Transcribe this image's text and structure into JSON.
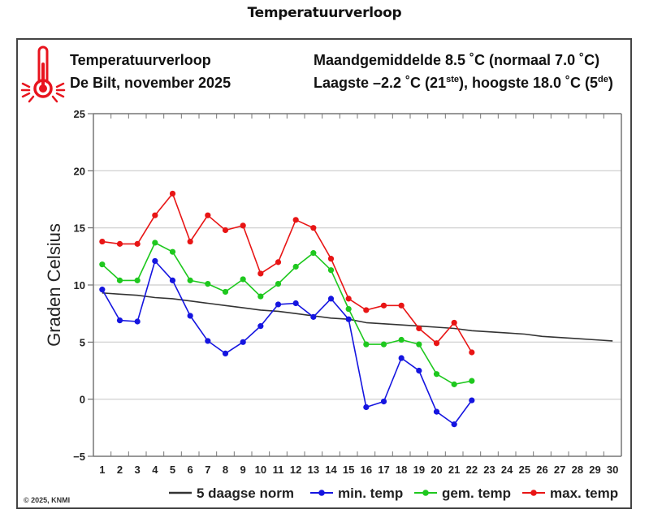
{
  "page": {
    "title": "Temperatuurverloop"
  },
  "header": {
    "title": "Temperatuurverloop",
    "subtitle": "De Bilt, november 2025",
    "monthly_avg_prefix": "Maandgemiddelde 8.5 ˚C (normaal 7.0 ˚C)",
    "extremes_part1": "Laagste –2.2 ˚C (21",
    "extremes_sup1": "ste",
    "extremes_part2": "), hoogste 18.0 ˚C (5",
    "extremes_sup2": "de",
    "extremes_part3": ")",
    "icon": "thermometer-hot-icon"
  },
  "footer": {
    "copyright": "© 2025, KNMI"
  },
  "colors": {
    "norm": "#333333",
    "min": "#1515e0",
    "avg": "#1ec81e",
    "max": "#e81515",
    "grid": "#cccccc",
    "icon": "#e8141e"
  },
  "chart_data": {
    "type": "line",
    "title": "Temperatuurverloop",
    "subtitle": "De Bilt, november 2025",
    "xlabel": "",
    "ylabel": "Graden Celsius",
    "xlim": [
      0.5,
      30.5
    ],
    "ylim": [
      -5,
      25
    ],
    "x_ticks": [
      1,
      2,
      3,
      4,
      5,
      6,
      7,
      8,
      9,
      10,
      11,
      12,
      13,
      14,
      15,
      16,
      17,
      18,
      19,
      20,
      21,
      22,
      23,
      24,
      25,
      26,
      27,
      28,
      29,
      30
    ],
    "y_ticks": [
      -5,
      0,
      5,
      10,
      15,
      20,
      25
    ],
    "y_tick_labels": [
      "−5",
      "0",
      "5",
      "10",
      "15",
      "20",
      "25"
    ],
    "grid": "horizontal",
    "legend_position": "bottom-right",
    "series": [
      {
        "name": "5 daagse norm",
        "key": "norm",
        "markers": false,
        "x": [
          1,
          2,
          3,
          4,
          5,
          6,
          7,
          8,
          9,
          10,
          11,
          12,
          13,
          14,
          15,
          16,
          17,
          18,
          19,
          20,
          21,
          22,
          23,
          24,
          25,
          26,
          27,
          28,
          29,
          30
        ],
        "values": [
          9.3,
          9.2,
          9.1,
          8.9,
          8.8,
          8.6,
          8.4,
          8.2,
          8.0,
          7.8,
          7.7,
          7.5,
          7.3,
          7.1,
          7.0,
          6.7,
          6.6,
          6.5,
          6.4,
          6.3,
          6.2,
          6.0,
          5.9,
          5.8,
          5.7,
          5.5,
          5.4,
          5.3,
          5.2,
          5.1
        ]
      },
      {
        "name": "min. temp",
        "key": "min",
        "markers": true,
        "x": [
          1,
          2,
          3,
          4,
          5,
          6,
          7,
          8,
          9,
          10,
          11,
          12,
          13,
          14,
          15,
          16,
          17,
          18,
          19,
          20,
          21,
          22
        ],
        "values": [
          9.6,
          6.9,
          6.8,
          12.1,
          10.4,
          7.3,
          5.1,
          4.0,
          5.0,
          6.4,
          8.3,
          8.4,
          7.2,
          8.8,
          7.0,
          -0.7,
          -0.2,
          3.6,
          2.5,
          -1.1,
          -2.2,
          -0.1
        ]
      },
      {
        "name": "gem. temp",
        "key": "avg",
        "markers": true,
        "x": [
          1,
          2,
          3,
          4,
          5,
          6,
          7,
          8,
          9,
          10,
          11,
          12,
          13,
          14,
          15,
          16,
          17,
          18,
          19,
          20,
          21,
          22
        ],
        "values": [
          11.8,
          10.4,
          10.4,
          13.7,
          12.9,
          10.4,
          10.1,
          9.4,
          10.5,
          9.0,
          10.1,
          11.6,
          12.8,
          11.3,
          7.9,
          4.8,
          4.8,
          5.2,
          4.8,
          2.2,
          1.3,
          1.6
        ]
      },
      {
        "name": "max. temp",
        "key": "max",
        "markers": true,
        "x": [
          1,
          2,
          3,
          4,
          5,
          6,
          7,
          8,
          9,
          10,
          11,
          12,
          13,
          14,
          15,
          16,
          17,
          18,
          19,
          20,
          21,
          22
        ],
        "values": [
          13.8,
          13.6,
          13.6,
          16.1,
          18.0,
          13.8,
          16.1,
          14.8,
          15.2,
          11.0,
          12.0,
          15.7,
          15.0,
          12.3,
          8.8,
          7.8,
          8.2,
          8.2,
          6.2,
          4.9,
          6.7,
          4.1
        ]
      }
    ]
  }
}
